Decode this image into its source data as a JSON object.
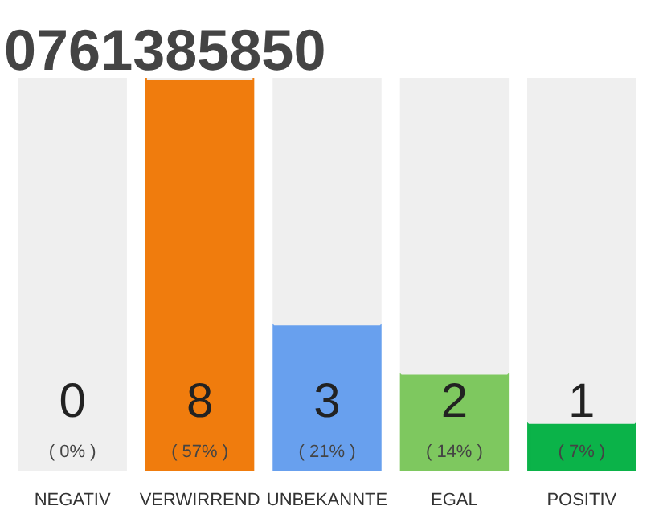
{
  "chart_data": {
    "type": "bar",
    "title": "0761385850",
    "categories": [
      "NEGATIV",
      "VERWIRREND",
      "UNBEKANNTE",
      "EGAL",
      "POSITIV"
    ],
    "stacked": true,
    "series": [
      {
        "colors": [
          "#e8173a",
          "#f07c0d",
          "#68a0ee",
          "#7ec85f",
          "#0bb349"
        ],
        "values": [
          0,
          8,
          3,
          2,
          1
        ],
        "value_labels": [
          "0",
          "8",
          "3",
          "2",
          "1"
        ]
      },
      {
        "color": "#efefef",
        "values": [
          8,
          0,
          5,
          6,
          7
        ]
      }
    ],
    "annotations": [
      {
        "text": "( 0% )",
        "x": "NEGATIV",
        "y": 0
      },
      {
        "text": "( 57% )",
        "x": "VERWIRREND",
        "y": 0
      },
      {
        "text": "( 21% )",
        "x": "UNBEKANNTE",
        "y": 0
      },
      {
        "text": "( 14% )",
        "x": "EGAL",
        "y": 0
      },
      {
        "text": "( 7% )",
        "x": "POSITIV",
        "y": 0
      }
    ]
  }
}
